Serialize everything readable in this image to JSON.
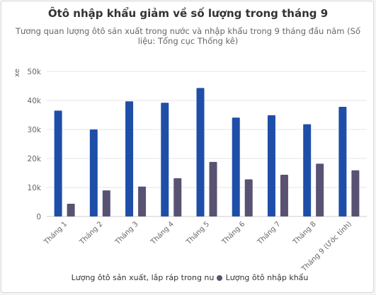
{
  "chart_data": {
    "type": "bar",
    "title": "Ôtô nhập khẩu giảm về số lượng trong tháng 9",
    "subtitle": "Tương quan lượng ôtô sản xuất trong nước và nhập khẩu trong 9 tháng đầu năm (Số liệu: Tổng cục Thống kê)",
    "xlabel": "",
    "ylabel": "xe",
    "ylim": [
      0,
      50000
    ],
    "yticks": [
      0,
      10000,
      20000,
      30000,
      40000,
      50000
    ],
    "ytick_labels": [
      "0",
      "10k",
      "20k",
      "30k",
      "40k",
      "50k"
    ],
    "grid": true,
    "legend_position": "bottom",
    "categories": [
      "Tháng 1",
      "Tháng 2",
      "Tháng 3",
      "Tháng 4",
      "Tháng 5",
      "Tháng 6",
      "Tháng 7",
      "Tháng 8",
      "Tháng 9 (Ước tính)"
    ],
    "series": [
      {
        "name": "Lượng ôtô sản xuất, lắp ráp trong nước",
        "color": "#1f4ea8",
        "values": [
          36500,
          30000,
          39700,
          39200,
          44300,
          34100,
          34900,
          31800,
          37800
        ]
      },
      {
        "name": "Lượng ôtô nhập khẩu",
        "color": "#595273",
        "values": [
          4400,
          9000,
          10300,
          13200,
          18800,
          12800,
          14400,
          18200,
          15900
        ]
      }
    ]
  }
}
